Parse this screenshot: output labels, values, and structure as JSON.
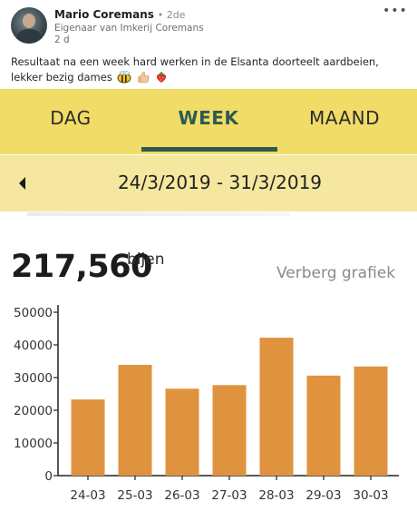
{
  "post": {
    "author_name": "Mario Coremans",
    "degree": "• 2de",
    "author_subtitle": "Eigenaar van Imkerij Coremans",
    "age": "2 d",
    "more_label": "•••",
    "text": "Resultaat na een week hard werken in de Elsanta doorteelt aardbeien, lekker bezig dames",
    "emojis": [
      "bee-emoji",
      "thumbs-up-emoji",
      "strawberry-emoji"
    ]
  },
  "app": {
    "tabs": [
      {
        "label": "DAG",
        "active": false
      },
      {
        "label": "WEEK",
        "active": true
      },
      {
        "label": "MAAND",
        "active": false
      }
    ],
    "date_range": "24/3/2019 - 31/3/2019",
    "total_value": "217,560",
    "total_unit": "bijen",
    "hide_chart_label": "Verberg grafiek",
    "colors": {
      "tabs_bg": "#f1dc67",
      "date_bg": "#f5e79f",
      "accent": "#2e5b50",
      "bar": "#e0933e"
    }
  },
  "chart_data": {
    "type": "bar",
    "categories": [
      "24-03",
      "25-03",
      "26-03",
      "27-03",
      "28-03",
      "29-03",
      "30-03"
    ],
    "values": [
      23300,
      33900,
      26600,
      27700,
      42200,
      30600,
      33400
    ],
    "yticks": [
      "0",
      "10000",
      "20000",
      "30000",
      "40000",
      "50000"
    ],
    "ylim": [
      0,
      50000
    ],
    "title": "",
    "xlabel": "",
    "ylabel": "",
    "grid": false
  }
}
